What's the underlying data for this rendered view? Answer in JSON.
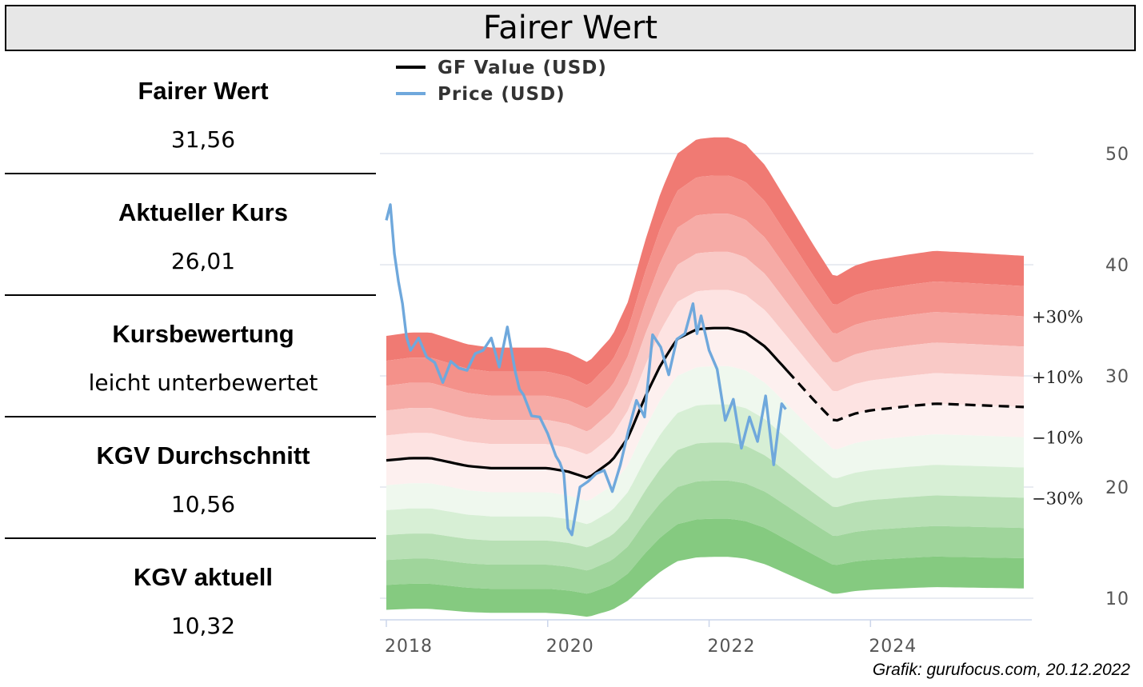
{
  "header": {
    "title": "Fairer Wert"
  },
  "stats": [
    {
      "label": "Fairer Wert",
      "value": "31,56"
    },
    {
      "label": "Aktueller Kurs",
      "value": "26,01"
    },
    {
      "label": "Kursbewertung",
      "value": "leicht unterbewertet"
    },
    {
      "label": "KGV Durchschnitt",
      "value": "10,56"
    },
    {
      "label": "KGV aktuell",
      "value": "10,32"
    }
  ],
  "credit": "Grafik: gurufocus.com, 20.12.2022",
  "chart_data": {
    "type": "line",
    "legend": [
      {
        "name": "GF Value (USD)",
        "color": "#000000"
      },
      {
        "name": "Price (USD)",
        "color": "#6fa8dc"
      }
    ],
    "legend_position": "top-left",
    "x_ticks": [
      "2018",
      "2020",
      "2022",
      "2024"
    ],
    "y_ticks": [
      "10",
      "20",
      "30",
      "40",
      "50"
    ],
    "ylim": [
      10,
      50
    ],
    "xlim": [
      2018,
      2025.9
    ],
    "band_labels": [
      "+30%",
      "+10%",
      "-10%",
      "-30%"
    ],
    "band_colors": [
      "#f07a73",
      "#f4918a",
      "#f6aba6",
      "#f9c9c6",
      "#fde3e2",
      "#fdf0ef",
      "#eff8ee",
      "#d7efd5",
      "#b8e0b5",
      "#9fd59b",
      "#85ca80"
    ],
    "band_multipliers": [
      1.5,
      1.4,
      1.3,
      1.2,
      1.1,
      1.0,
      0.9,
      0.8,
      0.7,
      0.6,
      0.5
    ],
    "gf_value": {
      "name": "GF Value (USD)",
      "x": [
        2018.0,
        2018.3,
        2018.55,
        2019.0,
        2019.3,
        2019.6,
        2020.0,
        2020.25,
        2020.5,
        2020.8,
        2021.0,
        2021.2,
        2021.4,
        2021.6,
        2021.85,
        2022.05,
        2022.25,
        2022.45,
        2022.7,
        2023.0,
        2023.3,
        2023.55,
        2023.8,
        2024.0,
        2024.5,
        2024.8,
        2025.2,
        2025.9
      ],
      "y": [
        22.4,
        22.6,
        22.6,
        21.9,
        21.7,
        21.7,
        21.7,
        21.4,
        20.8,
        22.4,
        24.5,
        28.0,
        31.0,
        33.3,
        34.2,
        34.3,
        34.3,
        33.9,
        32.6,
        30.2,
        27.8,
        25.9,
        26.6,
        26.9,
        27.3,
        27.5,
        27.4,
        27.2
      ],
      "projected_from": 2023.0
    },
    "price": {
      "name": "Price (USD)",
      "x": [
        2018.0,
        2018.05,
        2018.1,
        2018.15,
        2018.2,
        2018.25,
        2018.3,
        2018.4,
        2018.5,
        2018.6,
        2018.7,
        2018.8,
        2018.9,
        2019.0,
        2019.1,
        2019.2,
        2019.3,
        2019.4,
        2019.5,
        2019.6,
        2019.65,
        2019.7,
        2019.8,
        2019.9,
        2020.0,
        2020.1,
        2020.15,
        2020.2,
        2020.25,
        2020.3,
        2020.4,
        2020.5,
        2020.6,
        2020.7,
        2020.8,
        2020.9,
        2021.0,
        2021.1,
        2021.2,
        2021.3,
        2021.4,
        2021.5,
        2021.6,
        2021.7,
        2021.8,
        2021.85,
        2021.9,
        2022.0,
        2022.1,
        2022.2,
        2022.3,
        2022.4,
        2022.5,
        2022.6,
        2022.7,
        2022.8,
        2022.85,
        2022.9,
        2022.95
      ],
      "y": [
        44.0,
        45.4,
        41.0,
        38.5,
        36.5,
        33.5,
        32.3,
        33.4,
        31.7,
        31.2,
        29.4,
        31.3,
        30.7,
        30.5,
        32.0,
        32.3,
        33.4,
        30.8,
        34.4,
        30.3,
        28.8,
        28.3,
        26.4,
        26.3,
        24.8,
        22.8,
        22.2,
        21.2,
        16.3,
        15.7,
        20.0,
        20.5,
        21.2,
        21.5,
        19.6,
        22.0,
        25.1,
        27.8,
        26.3,
        33.7,
        32.6,
        30.1,
        33.3,
        33.8,
        36.5,
        33.8,
        35.4,
        32.3,
        30.6,
        26.0,
        27.9,
        23.5,
        26.3,
        24.1,
        28.2,
        22.0,
        24.9,
        27.5,
        27.0
      ]
    }
  }
}
